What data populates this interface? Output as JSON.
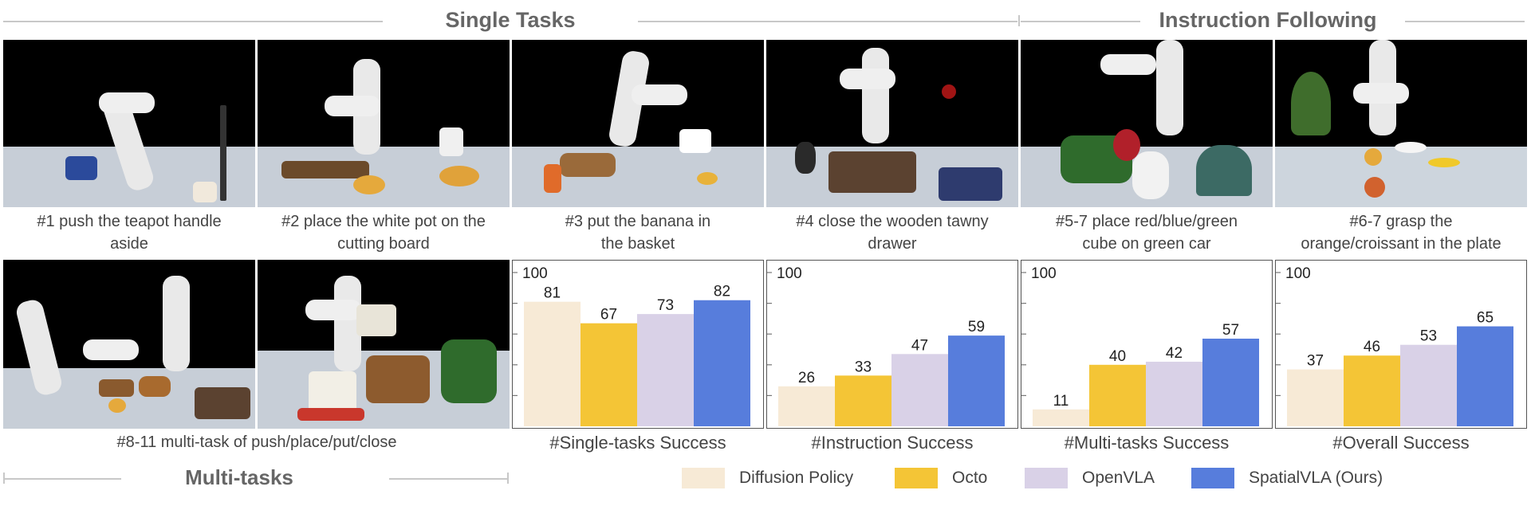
{
  "headers": {
    "single_tasks": "Single Tasks",
    "instruction_following": "Instruction Following",
    "multi_tasks": "Multi-tasks"
  },
  "tasks": [
    {
      "caption_line1": "#1 push the teapot handle",
      "caption_line2": "aside"
    },
    {
      "caption_line1": "#2 place the white pot on the",
      "caption_line2": "cutting board"
    },
    {
      "caption_line1": "#3 put the banana in",
      "caption_line2": "the basket"
    },
    {
      "caption_line1": "#4 close the wooden tawny",
      "caption_line2": "drawer"
    },
    {
      "caption_line1": "#5-7 place red/blue/green",
      "caption_line2": "cube on green car"
    },
    {
      "caption_line1": "#6-7 grasp the",
      "caption_line2": "orange/croissant in the plate"
    }
  ],
  "multi_caption": "#8-11 multi-task of push/place/put/close",
  "legend": [
    {
      "label": "Diffusion Policy",
      "color": "#f7ead6"
    },
    {
      "label": "Octo",
      "color": "#f4c536"
    },
    {
      "label": "OpenVLA",
      "color": "#d9d1e7"
    },
    {
      "label": "SpatialVLA (Ours)",
      "color": "#577ddc"
    }
  ],
  "chart_data": [
    {
      "type": "bar",
      "title": "#Single-tasks Success",
      "ylim": [
        0,
        100
      ],
      "ytick_label": "100",
      "categories": [
        "Diffusion Policy",
        "Octo",
        "OpenVLA",
        "SpatialVLA (Ours)"
      ],
      "values": [
        81,
        67,
        73,
        82
      ]
    },
    {
      "type": "bar",
      "title": "#Instruction Success",
      "ylim": [
        0,
        100
      ],
      "ytick_label": "100",
      "categories": [
        "Diffusion Policy",
        "Octo",
        "OpenVLA",
        "SpatialVLA (Ours)"
      ],
      "values": [
        26,
        33,
        47,
        59
      ]
    },
    {
      "type": "bar",
      "title": "#Multi-tasks Success",
      "ylim": [
        0,
        100
      ],
      "ytick_label": "100",
      "categories": [
        "Diffusion Policy",
        "Octo",
        "OpenVLA",
        "SpatialVLA (Ours)"
      ],
      "values": [
        11,
        40,
        42,
        57
      ]
    },
    {
      "type": "bar",
      "title": "#Overall  Success",
      "ylim": [
        0,
        100
      ],
      "ytick_label": "100",
      "categories": [
        "Diffusion Policy",
        "Octo",
        "OpenVLA",
        "SpatialVLA (Ours)"
      ],
      "values": [
        37,
        46,
        53,
        65
      ]
    }
  ]
}
